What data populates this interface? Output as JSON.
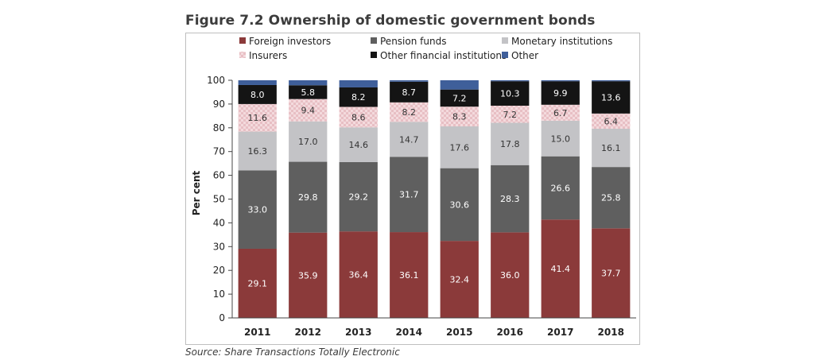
{
  "figure": {
    "title": "Figure 7.2 Ownership of domestic government bonds",
    "source": "Source: Share Transactions Totally Electronic"
  },
  "chart_data": {
    "type": "bar",
    "stacked": true,
    "categories": [
      "2011",
      "2012",
      "2013",
      "2014",
      "2015",
      "2016",
      "2017",
      "2018"
    ],
    "ylabel": "Per cent",
    "xlabel": "",
    "ylim": [
      0,
      100
    ],
    "yticks": [
      0,
      10,
      20,
      30,
      40,
      50,
      60,
      70,
      80,
      90,
      100
    ],
    "grid": false,
    "legend_position": "top",
    "series": [
      {
        "name": "Foreign investors",
        "color": "#8b3a3a",
        "label_color": "#ffffff",
        "values": [
          29.1,
          35.9,
          36.4,
          36.1,
          32.4,
          36.0,
          41.4,
          37.7
        ],
        "labels": [
          "29.1",
          "35.9",
          "36.4",
          "36.1",
          "32.4",
          "36.0",
          "41.4",
          "37.7"
        ]
      },
      {
        "name": "Pension funds",
        "color": "#5f5f5f",
        "label_color": "#ffffff",
        "values": [
          33.0,
          29.8,
          29.2,
          31.7,
          30.6,
          28.3,
          26.6,
          25.8
        ],
        "labels": [
          "33.0",
          "29.8",
          "29.2",
          "31.7",
          "30.6",
          "28.3",
          "26.6",
          "25.8"
        ]
      },
      {
        "name": "Monetary institutions",
        "color": "#c3c3c6",
        "label_color": "#333333",
        "values": [
          16.3,
          17.0,
          14.6,
          14.7,
          17.6,
          17.8,
          15.0,
          16.1
        ],
        "labels": [
          "16.3",
          "17.0",
          "14.6",
          "14.7",
          "17.6",
          "17.8",
          "15.0",
          "16.1"
        ]
      },
      {
        "name": "Insurers",
        "color": "#f0d0d4",
        "label_color": "#333333",
        "pattern": "checker",
        "values": [
          11.6,
          9.4,
          8.6,
          8.2,
          8.3,
          7.2,
          6.7,
          6.4
        ],
        "labels": [
          "11.6",
          "9.4",
          "8.6",
          "8.2",
          "8.3",
          "7.2",
          "6.7",
          "6.4"
        ]
      },
      {
        "name": "Other financial institutions",
        "color": "#141414",
        "label_color": "#ffffff",
        "values": [
          8.0,
          5.8,
          8.2,
          8.7,
          7.2,
          10.3,
          9.9,
          13.6
        ],
        "labels": [
          "8.0",
          "5.8",
          "8.2",
          "8.7",
          "7.2",
          "10.3",
          "9.9",
          "13.6"
        ]
      },
      {
        "name": "Other",
        "color": "#3f5f9a",
        "label_color": "#ffffff",
        "values": [
          2.0,
          2.1,
          3.0,
          0.8,
          3.9,
          0.4,
          0.4,
          0.4
        ],
        "labels": [
          "",
          "",
          "",
          "",
          "",
          "",
          "",
          ""
        ]
      }
    ]
  }
}
